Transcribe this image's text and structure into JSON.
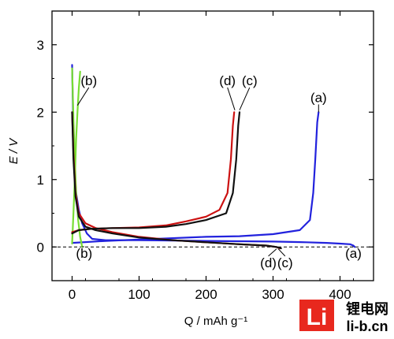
{
  "chart_data": {
    "type": "line",
    "title": "",
    "xlabel": "Q  /  mAh g⁻¹",
    "ylabel": "E  /  V",
    "xlim": [
      -30,
      450
    ],
    "ylim": [
      -0.5,
      3.5
    ],
    "xticks": [
      0,
      100,
      200,
      300,
      400
    ],
    "yticks": [
      0,
      1,
      2,
      3
    ],
    "grid": false,
    "legend": "none",
    "reference_line": {
      "y": 0,
      "style": "dashed"
    },
    "series": [
      {
        "color": "#2222dd",
        "x": [
          0,
          1,
          3,
          6,
          10,
          15,
          22,
          30,
          50,
          100,
          200,
          300,
          350,
          380,
          400,
          415,
          420,
          422
        ],
        "y": [
          2.7,
          2.2,
          1.2,
          0.8,
          0.55,
          0.35,
          0.2,
          0.12,
          0.1,
          0.1,
          0.09,
          0.08,
          0.07,
          0.06,
          0.05,
          0.04,
          0.02,
          0.0
        ]
      },
      {
        "color": "#2222dd",
        "x": [
          0,
          50,
          100,
          150,
          200,
          250,
          300,
          340,
          355,
          360,
          363,
          366,
          368
        ],
        "y": [
          0.06,
          0.09,
          0.11,
          0.13,
          0.15,
          0.16,
          0.19,
          0.25,
          0.4,
          0.8,
          1.3,
          1.85,
          2.0
        ]
      },
      {
        "color": "#77dd33",
        "x": [
          0,
          1,
          2,
          4,
          6,
          9,
          12,
          15
        ],
        "y": [
          2.65,
          2.3,
          1.9,
          1.3,
          0.8,
          0.4,
          0.15,
          0.0
        ]
      },
      {
        "color": "#77dd33",
        "x": [
          0,
          2,
          4,
          6,
          8,
          10,
          12
        ],
        "y": [
          0.05,
          0.5,
          1.0,
          1.6,
          2.0,
          2.35,
          2.6
        ]
      },
      {
        "color": "#cc1111",
        "x": [
          0,
          2,
          5,
          10,
          20,
          35,
          60,
          100,
          150,
          200,
          250,
          290,
          305,
          310
        ],
        "y": [
          2.0,
          1.4,
          0.8,
          0.5,
          0.35,
          0.28,
          0.22,
          0.15,
          0.1,
          0.07,
          0.04,
          0.02,
          0.0,
          -0.02
        ]
      },
      {
        "color": "#cc1111",
        "x": [
          0,
          10,
          30,
          60,
          100,
          140,
          170,
          200,
          220,
          232,
          237,
          240,
          242
        ],
        "y": [
          0.22,
          0.25,
          0.27,
          0.28,
          0.29,
          0.32,
          0.38,
          0.45,
          0.55,
          0.8,
          1.3,
          1.8,
          2.0
        ]
      },
      {
        "color": "#111111",
        "x": [
          0,
          2,
          5,
          10,
          20,
          35,
          60,
          100,
          150,
          200,
          250,
          290,
          305,
          312
        ],
        "y": [
          2.0,
          1.3,
          0.75,
          0.45,
          0.3,
          0.25,
          0.2,
          0.14,
          0.1,
          0.07,
          0.04,
          0.02,
          0.0,
          -0.02
        ]
      },
      {
        "color": "#111111",
        "x": [
          0,
          10,
          30,
          60,
          100,
          140,
          170,
          200,
          230,
          240,
          245,
          248,
          250
        ],
        "y": [
          0.2,
          0.25,
          0.27,
          0.28,
          0.28,
          0.3,
          0.34,
          0.4,
          0.5,
          0.8,
          1.3,
          1.8,
          2.0
        ]
      }
    ],
    "annotations": [
      {
        "text": "(a)",
        "x": 368,
        "y": 2.15,
        "tx": 368,
        "ty": 2.0
      },
      {
        "text": "(a)",
        "x": 420,
        "y": -0.16,
        "tx": 418,
        "ty": 0.0
      },
      {
        "text": "(b)",
        "x": 25,
        "y": 2.4,
        "tx": 8,
        "ty": 2.1
      },
      {
        "text": "(b)",
        "x": 18,
        "y": -0.16,
        "tx": 15,
        "ty": 0.0
      },
      {
        "text": "(c)",
        "x": 265,
        "y": 2.4,
        "tx": 250,
        "ty": 2.03
      },
      {
        "text": "(c)",
        "x": 318,
        "y": -0.3,
        "tx": 308,
        "ty": -0.03
      },
      {
        "text": "(d)",
        "x": 232,
        "y": 2.4,
        "tx": 243,
        "ty": 2.03
      },
      {
        "text": "(d)",
        "x": 293,
        "y": -0.3,
        "tx": 305,
        "ty": -0.03
      }
    ]
  },
  "watermark": {
    "logo_glyphs": "Li",
    "site_name": "锂电网",
    "domain": "li-b.cn",
    "logo_color": "#e8281e"
  }
}
